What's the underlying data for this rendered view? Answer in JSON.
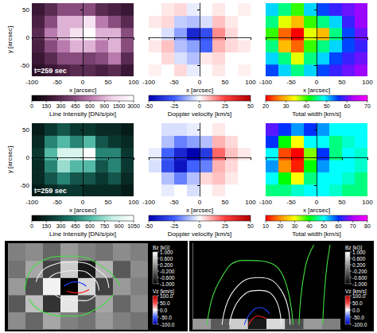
{
  "chart_data": [
    {
      "type": "heatmap",
      "xlim": [
        -100,
        100
      ],
      "xticks": [
        -100,
        -50,
        0,
        50,
        100
      ],
      "ylim": [
        -70,
        62
      ],
      "yticks": [
        -50,
        0,
        50
      ],
      "x_label": "x [arcsec]",
      "y_label": "y [arcsec]",
      "annotation": "t=259 sec",
      "x_edges": [
        -100,
        -75,
        -50,
        -25,
        0,
        25,
        50,
        75,
        100
      ],
      "y_edges": [
        -70,
        -48,
        -26,
        -4,
        18,
        40,
        62
      ],
      "cells": [
        [
          150,
          200,
          250,
          300,
          300,
          250,
          300,
          200
        ],
        [
          200,
          300,
          450,
          450,
          400,
          450,
          600,
          300
        ],
        [
          250,
          450,
          600,
          900,
          900,
          600,
          900,
          450
        ],
        [
          300,
          600,
          900,
          1500,
          3000,
          900,
          900,
          450
        ],
        [
          250,
          450,
          900,
          900,
          1500,
          600,
          450,
          300
        ],
        [
          200,
          300,
          450,
          450,
          450,
          300,
          250,
          200
        ]
      ],
      "colorbar": {
        "label": "Line Intensity [DN/s/pix]",
        "ticks": [
          0,
          150,
          300,
          450,
          600,
          900,
          1500,
          3000
        ]
      }
    },
    {
      "type": "heatmap",
      "xlim": [
        -100,
        100
      ],
      "xticks": [
        -100,
        -50,
        0,
        50,
        100
      ],
      "ylim": [
        -70,
        62
      ],
      "yticks": [
        -50,
        0,
        50
      ],
      "x_label": "x [arcsec]",
      "tick_labels": "x",
      "x_edges": [
        -100,
        -75,
        -50,
        -25,
        0,
        25,
        50,
        75,
        100
      ],
      "y_edges": [
        -70,
        -48,
        -26,
        -4,
        18,
        40,
        62
      ],
      "cells": [
        [
          2,
          0,
          5,
          -3,
          0,
          3,
          0,
          2
        ],
        [
          0,
          5,
          -5,
          -10,
          3,
          5,
          0,
          0
        ],
        [
          3,
          8,
          -10,
          -15,
          -25,
          10,
          5,
          3
        ],
        [
          0,
          -5,
          -15,
          -40,
          -30,
          15,
          5,
          0
        ],
        [
          3,
          5,
          -8,
          -10,
          -5,
          8,
          3,
          0
        ],
        [
          0,
          3,
          5,
          -3,
          0,
          3,
          0,
          2
        ]
      ],
      "colorbar": {
        "label": "Doppler velocity [km/s]",
        "ticks": [
          -50,
          -25,
          0,
          25,
          50
        ]
      }
    },
    {
      "type": "heatmap",
      "xlim": [
        -100,
        100
      ],
      "xticks": [
        -100,
        -50,
        0,
        50,
        100
      ],
      "ylim": [
        -70,
        62
      ],
      "yticks": [
        -50,
        0,
        50
      ],
      "x_label": "x [arcsec]",
      "tick_labels": "x",
      "x_edges": [
        -100,
        -75,
        -50,
        -25,
        0,
        25,
        50,
        75,
        100
      ],
      "y_edges": [
        -70,
        -48,
        -26,
        -4,
        18,
        40,
        62
      ],
      "cells": [
        [
          55,
          50,
          45,
          50,
          55,
          58,
          60,
          62
        ],
        [
          50,
          45,
          35,
          45,
          50,
          55,
          58,
          60
        ],
        [
          45,
          30,
          25,
          40,
          45,
          50,
          55,
          58
        ],
        [
          40,
          25,
          20,
          35,
          30,
          45,
          55,
          60
        ],
        [
          45,
          35,
          30,
          40,
          45,
          50,
          58,
          62
        ],
        [
          50,
          45,
          40,
          50,
          55,
          58,
          60,
          62
        ]
      ],
      "colorbar": {
        "label": "Total width [km/s]",
        "ticks": [
          20,
          30,
          40,
          50,
          60,
          70
        ]
      }
    },
    {
      "type": "heatmap",
      "xlim": [
        -100,
        100
      ],
      "xticks": [
        -100,
        -50,
        0,
        50,
        100
      ],
      "ylim": [
        -70,
        62
      ],
      "yticks": [
        -50,
        0,
        50
      ],
      "x_label": "x [arcsec]",
      "y_label": "y [arcsec]",
      "annotation": "t=259 sec",
      "x_edges": [
        -100,
        -75,
        -50,
        -25,
        0,
        25,
        50,
        75,
        100
      ],
      "y_edges": [
        -70,
        -48,
        -26,
        -4,
        18,
        40,
        62
      ],
      "cells": [
        [
          100,
          150,
          200,
          200,
          150,
          150,
          150,
          100
        ],
        [
          150,
          300,
          450,
          300,
          300,
          200,
          300,
          150
        ],
        [
          150,
          450,
          750,
          600,
          600,
          300,
          450,
          200
        ],
        [
          200,
          600,
          900,
          900,
          1050,
          450,
          450,
          200
        ],
        [
          150,
          450,
          600,
          450,
          600,
          300,
          200,
          150
        ],
        [
          100,
          200,
          300,
          200,
          200,
          150,
          150,
          100
        ]
      ],
      "colorbar": {
        "label": "Line Intensity [DN/s/pix]",
        "ticks": [
          0,
          150,
          300,
          450,
          600,
          750,
          900,
          1050
        ]
      }
    },
    {
      "type": "heatmap",
      "xlim": [
        -100,
        100
      ],
      "xticks": [
        -100,
        -50,
        0,
        50,
        100
      ],
      "ylim": [
        -70,
        62
      ],
      "yticks": [
        -50,
        0,
        50
      ],
      "x_label": "x [arcsec]",
      "tick_labels": "x",
      "x_edges": [
        -100,
        -75,
        -50,
        -25,
        0,
        25,
        50,
        75,
        100
      ],
      "y_edges": [
        -70,
        -48,
        -26,
        -4,
        18,
        40,
        62
      ],
      "cells": [
        [
          0,
          -3,
          0,
          -5,
          0,
          3,
          0,
          0
        ],
        [
          0,
          -10,
          -20,
          -10,
          5,
          8,
          3,
          0
        ],
        [
          -5,
          -30,
          -45,
          -25,
          -20,
          10,
          5,
          0
        ],
        [
          -3,
          -25,
          -40,
          -50,
          -35,
          20,
          8,
          3
        ],
        [
          0,
          -10,
          -20,
          -15,
          -10,
          10,
          5,
          0
        ],
        [
          0,
          -5,
          -5,
          -3,
          0,
          3,
          0,
          0
        ]
      ],
      "colorbar": {
        "label": "Doppler velocity [km/s]",
        "ticks": [
          -50,
          -25,
          0,
          25,
          50
        ]
      }
    },
    {
      "type": "heatmap",
      "xlim": [
        -100,
        100
      ],
      "xticks": [
        -100,
        -50,
        0,
        50,
        100
      ],
      "ylim": [
        -70,
        62
      ],
      "yticks": [
        -50,
        0,
        50
      ],
      "x_label": "x [arcsec]",
      "tick_labels": "x",
      "x_edges": [
        -100,
        -75,
        -50,
        -25,
        0,
        25,
        50,
        75,
        100
      ],
      "y_edges": [
        -70,
        -48,
        -26,
        -4,
        18,
        40,
        62
      ],
      "cells": [
        [
          45,
          45,
          48,
          50,
          50,
          48,
          45,
          45
        ],
        [
          50,
          40,
          30,
          45,
          50,
          50,
          48,
          45
        ],
        [
          55,
          20,
          12,
          40,
          55,
          50,
          50,
          48
        ],
        [
          50,
          15,
          10,
          35,
          60,
          45,
          50,
          48
        ],
        [
          60,
          40,
          30,
          50,
          50,
          45,
          48,
          50
        ],
        [
          65,
          60,
          55,
          60,
          55,
          50,
          50,
          50
        ]
      ],
      "colorbar": {
        "label": "Total width [km/s]",
        "ticks": [
          10,
          20,
          30,
          40,
          50,
          60,
          70,
          80
        ]
      }
    },
    {
      "type": "fieldlines",
      "tick_labels": false,
      "xlim": [
        0,
        100
      ],
      "ylim": [
        0,
        100
      ],
      "x_edges": [
        0,
        12.5,
        25,
        37.5,
        50,
        62.5,
        75,
        87.5,
        100
      ],
      "y_edges": [
        0,
        20,
        40,
        60,
        80,
        100
      ],
      "cells": [
        [
          0.1,
          -0.2,
          0.3,
          0.0,
          -0.1,
          0.2,
          0.0,
          -0.1
        ],
        [
          -0.3,
          0.5,
          -0.6,
          0.8,
          -0.4,
          0.3,
          -0.2,
          0.1
        ],
        [
          0.2,
          -0.4,
          0.9,
          -1.0,
          0.7,
          -0.5,
          0.2,
          0.0
        ],
        [
          -0.1,
          0.3,
          -0.5,
          0.6,
          -0.8,
          0.4,
          -0.3,
          0.1
        ],
        [
          0.0,
          0.1,
          -0.2,
          0.2,
          0.0,
          -0.1,
          0.1,
          0.0
        ]
      ],
      "series": [
        {
          "color": "#40e040",
          "values": [
            [
              12,
              45
            ],
            [
              20,
              75
            ],
            [
              45,
              85
            ],
            [
              70,
              70
            ],
            [
              80,
              50
            ]
          ]
        },
        {
          "color": "#40e040",
          "values": [
            [
              15,
              35
            ],
            [
              25,
              20
            ],
            [
              45,
              15
            ],
            [
              65,
              25
            ],
            [
              75,
              40
            ]
          ]
        },
        {
          "color": "#f0f0f0",
          "values": [
            [
              25,
              50
            ],
            [
              35,
              65
            ],
            [
              50,
              68
            ],
            [
              62,
              58
            ],
            [
              65,
              45
            ]
          ]
        },
        {
          "color": "#f0f0f0",
          "values": [
            [
              30,
              45
            ],
            [
              40,
              35
            ],
            [
              55,
              33
            ],
            [
              63,
              40
            ]
          ]
        },
        {
          "color": "#f0f0f0",
          "values": [
            [
              20,
              55
            ],
            [
              28,
              72
            ],
            [
              48,
              78
            ],
            [
              68,
              64
            ],
            [
              72,
              48
            ]
          ]
        },
        {
          "color": "#2040ff",
          "values": [
            [
              40,
              50
            ],
            [
              48,
              55
            ],
            [
              56,
              50
            ]
          ]
        },
        {
          "color": "#ff2020",
          "values": [
            [
              42,
              44
            ],
            [
              50,
              42
            ],
            [
              58,
              46
            ]
          ]
        }
      ],
      "colorbars": [
        {
          "label": "Bz [kG]",
          "ticks": [
            {
              "value": -1,
              "label": "-1.000"
            },
            {
              "value": -0.6,
              "label": "-0.600"
            },
            {
              "value": -0.2,
              "label": "-0.200"
            },
            {
              "value": 0.2,
              "label": "0.200"
            },
            {
              "value": 0.6,
              "label": "0.600"
            },
            {
              "value": 1,
              "label": "1.000"
            }
          ]
        },
        {
          "label": "Vz [km/s]",
          "ticks": [
            {
              "value": -100,
              "label": "-100.0"
            },
            {
              "value": -50,
              "label": "-50.0"
            },
            {
              "value": 0,
              "label": "0.0"
            },
            {
              "value": 50,
              "label": "50.0"
            },
            {
              "value": 100,
              "label": "100.0"
            }
          ]
        }
      ]
    },
    {
      "type": "fieldlines",
      "tick_labels": false,
      "xlim": [
        0,
        100
      ],
      "ylim": [
        0,
        100
      ],
      "x_edges": [
        0,
        12.5,
        25,
        37.5,
        50,
        62.5,
        75,
        87.5,
        100
      ],
      "y_edges": [
        0,
        12
      ],
      "cells": [
        [
          0.2,
          -0.3,
          0.6,
          -0.8,
          0.7,
          -0.4,
          0.2,
          0.0
        ]
      ],
      "series": [
        {
          "color": "#40e040",
          "values": [
            [
              10,
              5
            ],
            [
              18,
              55
            ],
            [
              35,
              80
            ],
            [
              55,
              75
            ],
            [
              68,
              5
            ]
          ]
        },
        {
          "color": "#f0f0f0",
          "values": [
            [
              20,
              5
            ],
            [
              28,
              45
            ],
            [
              45,
              60
            ],
            [
              60,
              45
            ],
            [
              66,
              5
            ]
          ]
        },
        {
          "color": "#f0f0f0",
          "values": [
            [
              25,
              5
            ],
            [
              32,
              35
            ],
            [
              45,
              45
            ],
            [
              56,
              35
            ],
            [
              60,
              5
            ]
          ]
        },
        {
          "color": "#40e040",
          "values": [
            [
              72,
              5
            ],
            [
              76,
              70
            ],
            [
              82,
              98
            ]
          ]
        },
        {
          "color": "#40e040",
          "values": [
            [
              88,
              5
            ],
            [
              90,
              60
            ],
            [
              93,
              98
            ]
          ]
        },
        {
          "color": "#2040ff",
          "values": [
            [
              35,
              5
            ],
            [
              40,
              20
            ],
            [
              46,
              25
            ],
            [
              52,
              18
            ]
          ]
        },
        {
          "color": "#ff2020",
          "values": [
            [
              38,
              5
            ],
            [
              44,
              15
            ],
            [
              50,
              12
            ]
          ]
        }
      ],
      "colorbars": [
        {
          "label": "Bz [kG]",
          "ticks": [
            {
              "value": -1,
              "label": "-1.000"
            },
            {
              "value": -0.6,
              "label": "-0.600"
            },
            {
              "value": -0.2,
              "label": "-0.200"
            },
            {
              "value": 0.2,
              "label": "0.200"
            },
            {
              "value": 0.6,
              "label": "0.600"
            },
            {
              "value": 1,
              "label": "1.000"
            }
          ]
        },
        {
          "label": "Vz [km/s]",
          "ticks": [
            {
              "value": -100,
              "label": "-100.0"
            },
            {
              "value": -50,
              "label": "-50.0"
            },
            {
              "value": 0,
              "label": "0.0"
            },
            {
              "value": 50,
              "label": "50.0"
            },
            {
              "value": 100,
              "label": "100.0"
            }
          ]
        }
      ]
    }
  ]
}
